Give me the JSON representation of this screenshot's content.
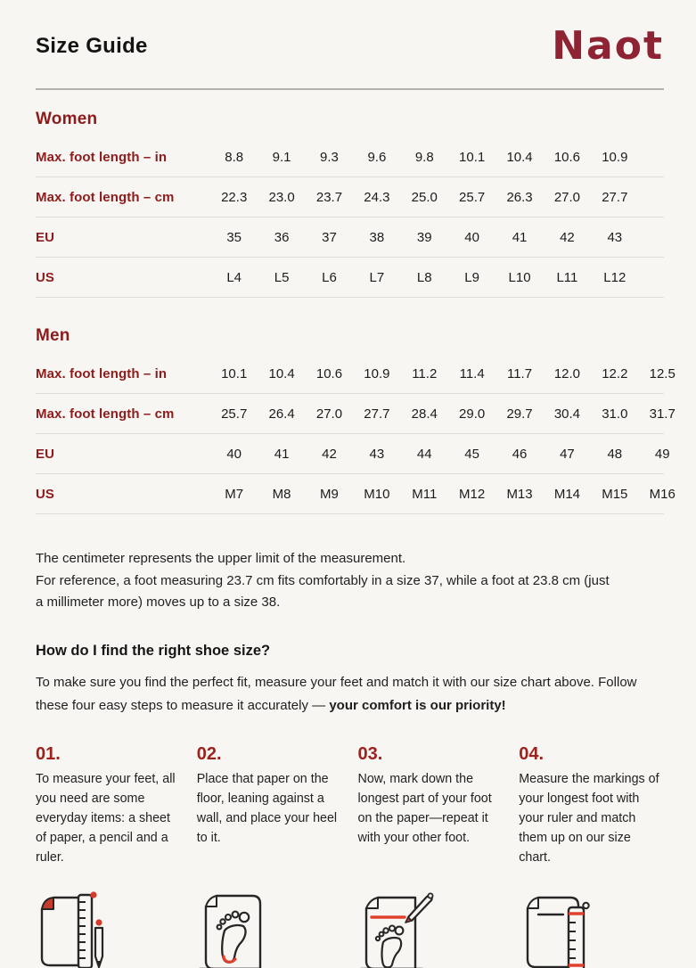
{
  "page": {
    "title": "Size Guide",
    "brand": "Naot"
  },
  "colors": {
    "background": "#f8f6f3",
    "brand_maroon": "#8e2433",
    "label_red": "#8e1b1b",
    "step_number_red": "#9e211c",
    "icon_accent_red": "#e0402c",
    "text": "#1e1e1e"
  },
  "women": {
    "heading": "Women",
    "rows": [
      {
        "label": "Max. foot length – in",
        "values": [
          "8.8",
          "9.1",
          "9.3",
          "9.6",
          "9.8",
          "10.1",
          "10.4",
          "10.6",
          "10.9"
        ]
      },
      {
        "label": "Max. foot length – cm",
        "values": [
          "22.3",
          "23.0",
          "23.7",
          "24.3",
          "25.0",
          "25.7",
          "26.3",
          "27.0",
          "27.7"
        ]
      },
      {
        "label": "EU",
        "values": [
          "35",
          "36",
          "37",
          "38",
          "39",
          "40",
          "41",
          "42",
          "43"
        ]
      },
      {
        "label": "US",
        "values": [
          "L4",
          "L5",
          "L6",
          "L7",
          "L8",
          "L9",
          "L10",
          "L11",
          "L12"
        ]
      }
    ]
  },
  "men": {
    "heading": "Men",
    "rows": [
      {
        "label": "Max. foot length – in",
        "values": [
          "10.1",
          "10.4",
          "10.6",
          "10.9",
          "11.2",
          "11.4",
          "11.7",
          "12.0",
          "12.2",
          "12.5"
        ]
      },
      {
        "label": "Max. foot length – cm",
        "values": [
          "25.7",
          "26.4",
          "27.0",
          "27.7",
          "28.4",
          "29.0",
          "29.7",
          "30.4",
          "31.0",
          "31.7"
        ]
      },
      {
        "label": "EU",
        "values": [
          "40",
          "41",
          "42",
          "43",
          "44",
          "45",
          "46",
          "47",
          "48",
          "49"
        ]
      },
      {
        "label": "US",
        "values": [
          "M7",
          "M8",
          "M9",
          "M10",
          "M11",
          "M12",
          "M13",
          "M14",
          "M15",
          "M16"
        ]
      }
    ]
  },
  "note": {
    "line1": "The centimeter represents the upper limit of the measurement.",
    "line2": "For reference, a foot measuring 23.7 cm fits comfortably in a size 37, while a foot at 23.8 cm (just a millimeter more) moves up to a size 38."
  },
  "howto": {
    "heading": "How do I find the right shoe size?",
    "body": "To make sure you find the perfect fit, measure your feet and match it with our size chart above. Follow these four easy steps to measure it accurately — ",
    "body_bold": "your comfort is our priority!"
  },
  "steps": [
    {
      "number": "01.",
      "text": "To measure your feet, all you need are some everyday items: a sheet of paper, a pencil and a ruler.",
      "icon": "paper-ruler-pencil-icon"
    },
    {
      "number": "02.",
      "text": "Place that paper on the floor, leaning against a wall, and place your heel to it.",
      "icon": "paper-footprint-heel-icon"
    },
    {
      "number": "03.",
      "text": "Now, mark down the longest part of your foot on the paper—repeat it with your other foot.",
      "icon": "paper-footprint-pencil-mark-icon"
    },
    {
      "number": "04.",
      "text": "Measure the markings of your longest foot with your ruler and match them up on our size chart.",
      "icon": "paper-ruler-measure-icon"
    }
  ]
}
